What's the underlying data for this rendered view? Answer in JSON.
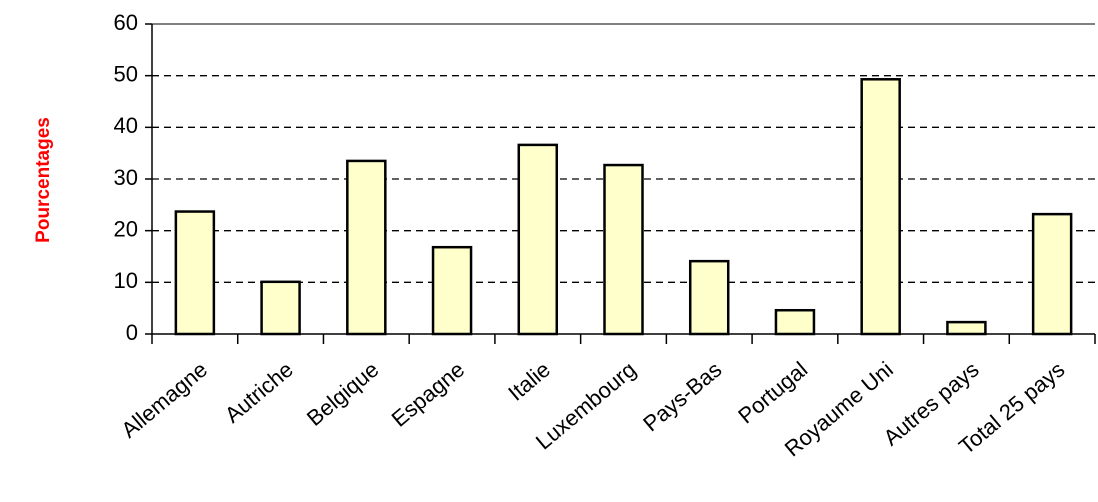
{
  "chart_data": {
    "type": "bar",
    "y_label": "Pourcentages",
    "categories": [
      "Allemagne",
      "Autriche",
      "Belgique",
      "Espagne",
      "Italie",
      "Luxembourg",
      "Pays-Bas",
      "Portugal",
      "Royaume Uni",
      "Autres pays",
      "Total 25 pays"
    ],
    "values": [
      23.7,
      10.1,
      33.5,
      16.8,
      36.6,
      32.7,
      14.1,
      4.6,
      49.3,
      2.3,
      23.2
    ],
    "color": "#ffffcc",
    "ylim": [
      0,
      60
    ],
    "yticks": [
      0,
      10,
      20,
      30,
      40,
      50,
      60
    ],
    "grid": true
  }
}
